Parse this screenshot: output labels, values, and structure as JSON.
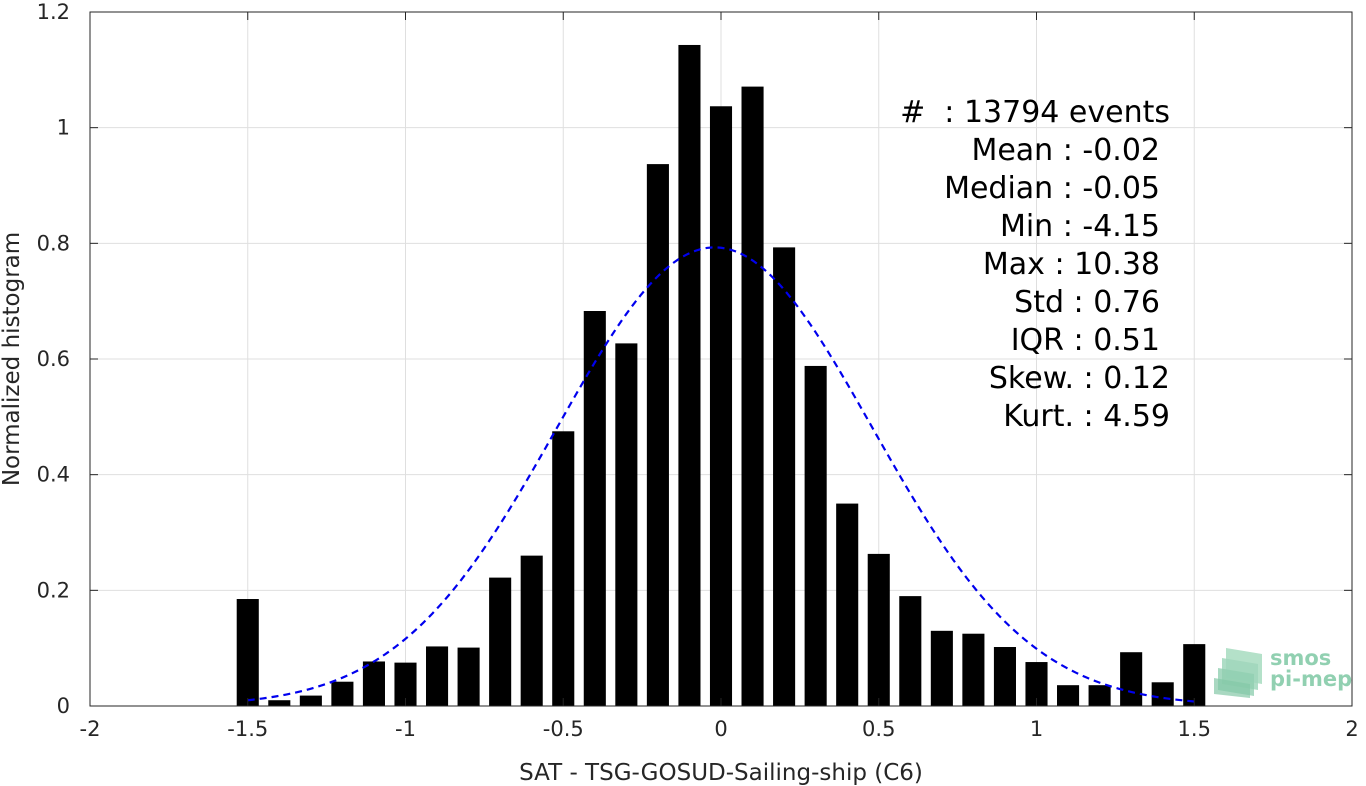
{
  "chart_data": {
    "type": "bar",
    "xlabel": "SAT - TSG-GOSUD-Sailing-ship (C6)",
    "ylabel": "Normalized histogram",
    "xlim": [
      -2,
      2
    ],
    "ylim": [
      0,
      1.2
    ],
    "xticks": [
      "-2",
      "-1.5",
      "-1",
      "-0.5",
      "0",
      "0.5",
      "1",
      "1.5",
      "2"
    ],
    "yticks": [
      "0",
      "0.2",
      "0.4",
      "0.6",
      "0.8",
      "1",
      "1.2"
    ],
    "grid": true,
    "bar_width": 0.07,
    "bar_color": "#000000",
    "x": [
      -1.5,
      -1.4,
      -1.3,
      -1.2,
      -1.1,
      -1.0,
      -0.9,
      -0.8,
      -0.7,
      -0.6,
      -0.5,
      -0.4,
      -0.3,
      -0.2,
      -0.1,
      0.0,
      0.1,
      0.2,
      0.3,
      0.4,
      0.5,
      0.6,
      0.7,
      0.8,
      0.9,
      1.0,
      1.1,
      1.2,
      1.3,
      1.4,
      1.5
    ],
    "values": [
      0.185,
      0.01,
      0.018,
      0.042,
      0.077,
      0.075,
      0.103,
      0.101,
      0.222,
      0.26,
      0.475,
      0.683,
      0.627,
      0.937,
      1.143,
      1.037,
      1.071,
      0.793,
      0.588,
      0.35,
      0.263,
      0.19,
      0.13,
      0.125,
      0.102,
      0.076,
      0.036,
      0.036,
      0.093,
      0.041,
      0.107
    ],
    "fit": {
      "type": "gaussian",
      "mean": -0.02,
      "std": 0.5,
      "peak": 0.793,
      "x_range": [
        -1.5,
        1.5
      ],
      "color": "#0000ee",
      "style": "dashed"
    },
    "annotations": [
      "#  : 13794 events",
      "Mean : -0.02",
      "Median : -0.05",
      "Min : -4.15",
      "Max : 10.38",
      "Std : 0.76",
      "IQR : 0.51",
      "Skew. : 0.12",
      "Kurt. : 4.59"
    ]
  },
  "logo": {
    "line1": "smos",
    "line2": "pi-mep"
  }
}
